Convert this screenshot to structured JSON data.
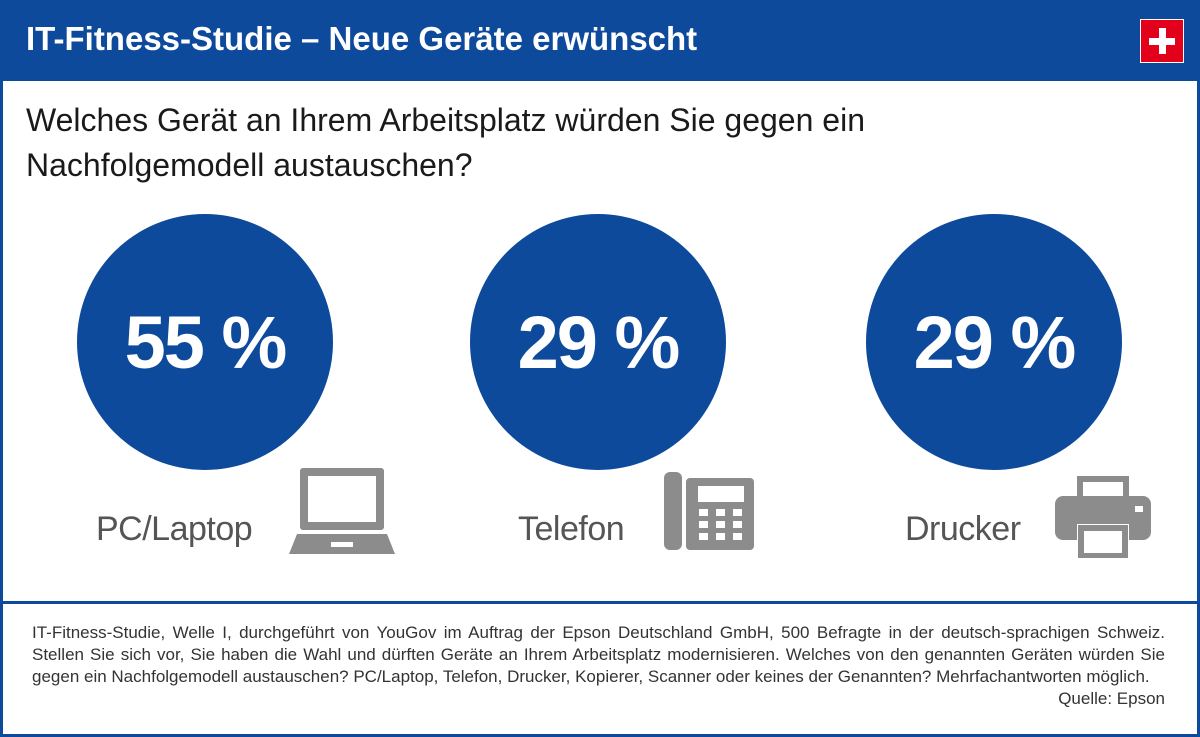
{
  "header": {
    "title": "IT-Fitness-Studie – Neue Geräte erwünscht",
    "flag_icon": "swiss-flag-icon",
    "brand_color": "#0d4a9c",
    "flag_color": "#e3001b"
  },
  "question": {
    "line1": "Welches Gerät an Ihrem Arbeitsplatz würden Sie gegen ein",
    "line2": "Nachfolgemodell austauschen?"
  },
  "chart_data": {
    "type": "bar",
    "title": "",
    "categories": [
      "PC/Laptop",
      "Telefon",
      "Drucker"
    ],
    "values": [
      55,
      29,
      29
    ],
    "unit": "%",
    "display_values": [
      "55 %",
      "29 %",
      "29 %"
    ],
    "icons": [
      "laptop-icon",
      "desk-phone-icon",
      "printer-icon"
    ]
  },
  "footnote": {
    "text": "IT-Fitness-Studie, Welle I, durchgeführt von YouGov im Auftrag der Epson Deutschland GmbH, 500 Befragte in der deutsch-sprachigen Schweiz. Stellen Sie sich vor, Sie haben die Wahl und dürften Geräte an Ihrem Arbeitsplatz modernisieren. Welches von den genannten Geräten würden Sie gegen ein Nachfolgemodell austauschen? PC/Laptop, Telefon, Drucker, Kopierer, Scanner oder keines der Genannten? Mehrfachantworten möglich.",
    "source": "Quelle: Epson"
  }
}
